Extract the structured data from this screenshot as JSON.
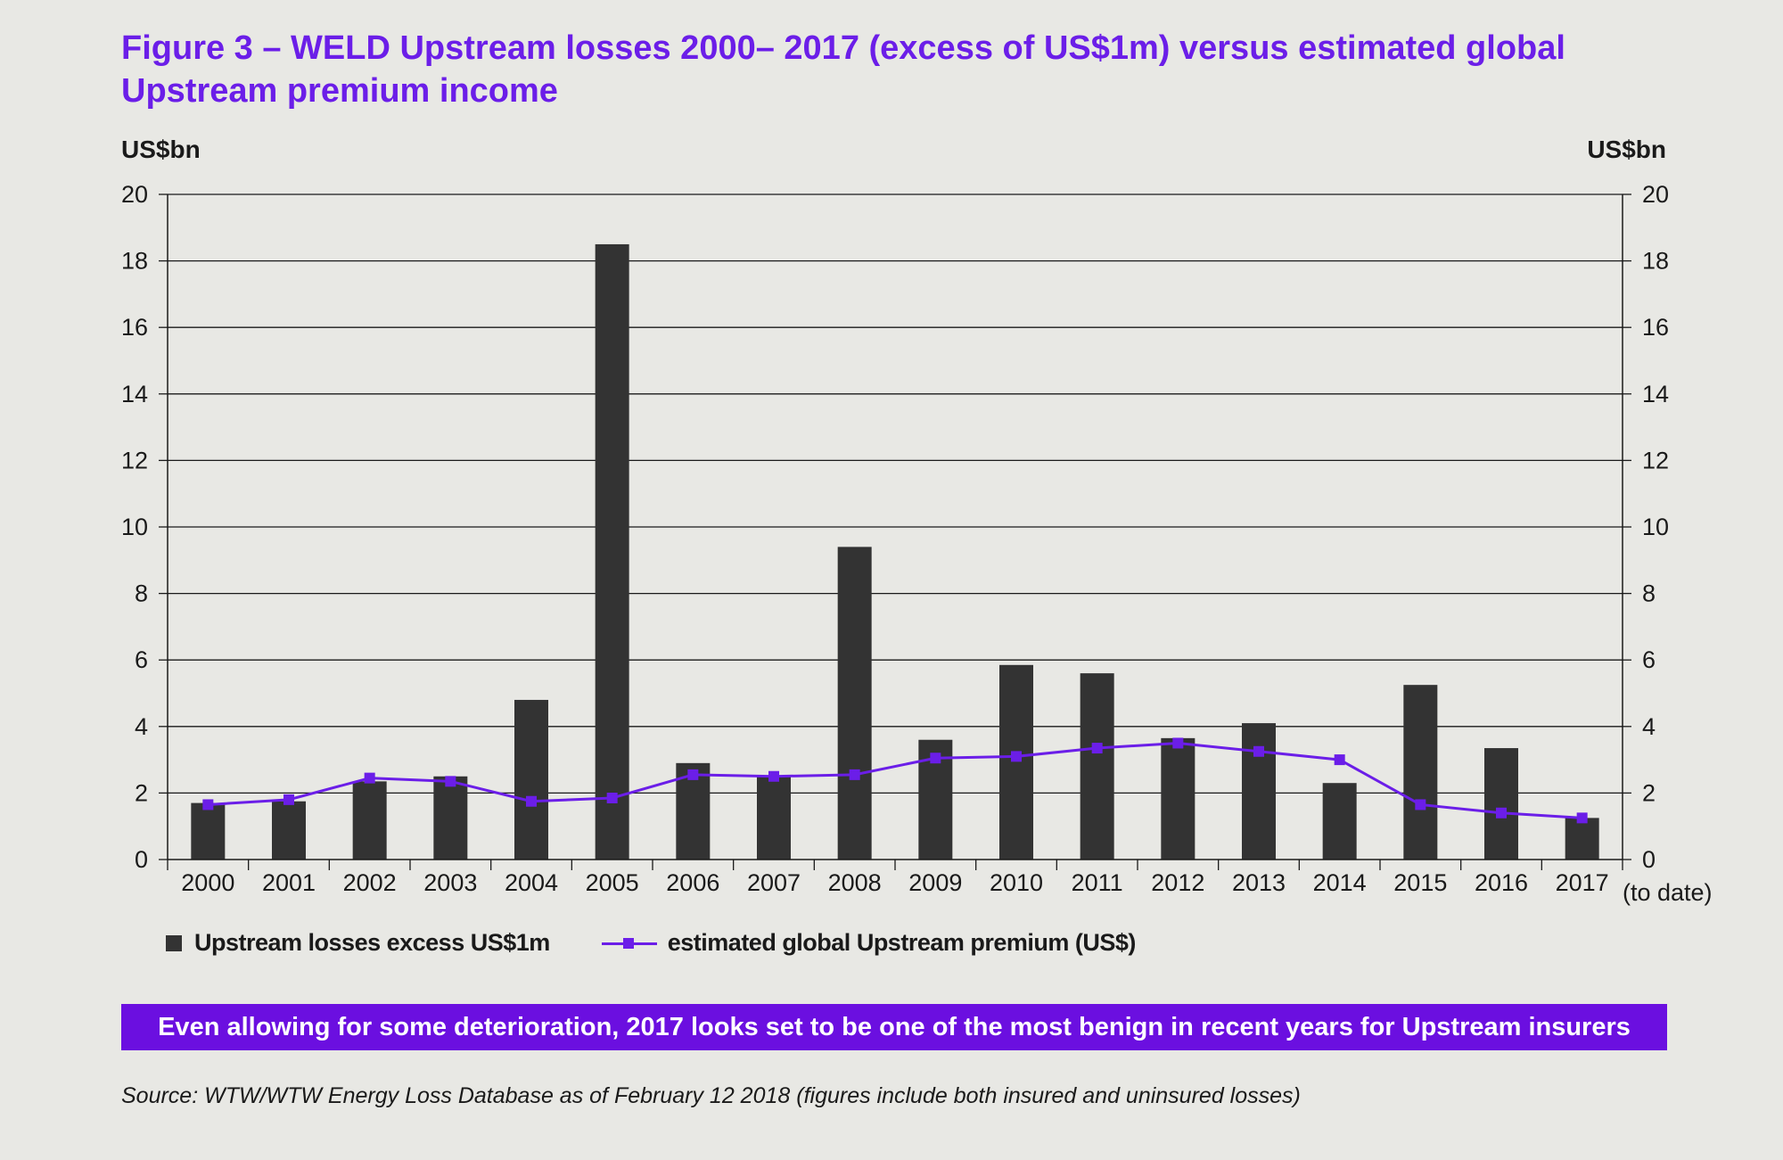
{
  "title": "Figure 3 – WELD Upstream losses 2000– 2017 (excess of US$1m) versus estimated global Upstream premium income",
  "y_unit_left": "US$bn",
  "y_unit_right": "US$bn",
  "x_note": "(to date)",
  "banner": "Even allowing for some deterioration, 2017 looks set to be one of the most benign in recent years for Upstream insurers",
  "source": "Source: WTW/WTW Energy Loss Database as of February 12 2018 (figures include both insured and uninsured losses)",
  "colors": {
    "title": "#6b1ee8",
    "bar": "#333333",
    "line": "#6b1ee8",
    "banner": "#6b0fe0",
    "background": "#e8e8e4"
  },
  "chart_data": {
    "type": "bar",
    "categories": [
      "2000",
      "2001",
      "2002",
      "2003",
      "2004",
      "2005",
      "2006",
      "2007",
      "2008",
      "2009",
      "2010",
      "2011",
      "2012",
      "2013",
      "2014",
      "2015",
      "2016",
      "2017"
    ],
    "ylim": [
      0,
      20
    ],
    "yticks": [
      0,
      2,
      4,
      6,
      8,
      10,
      12,
      14,
      16,
      18,
      20
    ],
    "grid": true,
    "legend_placement": "bottom",
    "series": [
      {
        "name": "Upstream losses excess US$1m",
        "type": "bar",
        "values": [
          1.7,
          1.75,
          2.35,
          2.5,
          4.8,
          18.5,
          2.9,
          2.5,
          9.4,
          3.6,
          5.85,
          5.6,
          3.65,
          4.1,
          2.3,
          5.25,
          3.35,
          1.25
        ]
      },
      {
        "name": "estimated global Upstream premium (US$)",
        "type": "line",
        "values": [
          1.65,
          1.8,
          2.45,
          2.35,
          1.75,
          1.85,
          2.55,
          2.5,
          2.55,
          3.05,
          3.1,
          3.35,
          3.5,
          3.25,
          3.0,
          1.65,
          1.4,
          1.25
        ]
      }
    ]
  }
}
